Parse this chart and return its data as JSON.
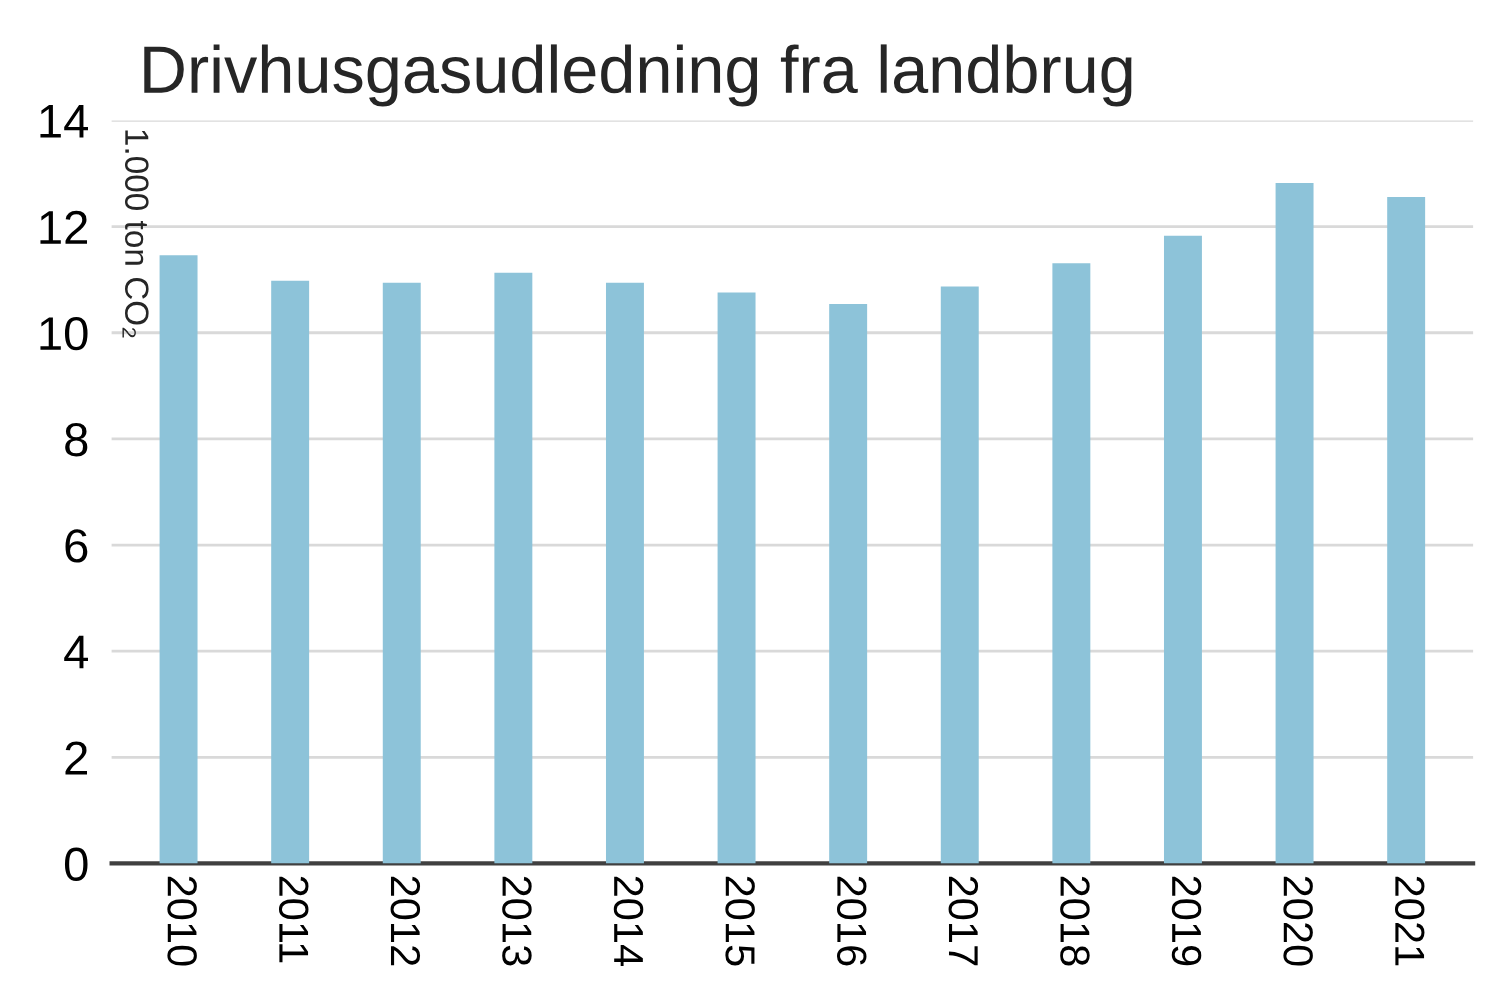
{
  "chart_data": {
    "type": "bar",
    "title": "Drivhusgasudledning fra landbrug",
    "ylabel": "1.000 ton CO₂",
    "categories": [
      "2010",
      "2011",
      "2012",
      "2013",
      "2014",
      "2015",
      "2016",
      "2017",
      "2018",
      "2019",
      "2020",
      "2021"
    ],
    "values": [
      11.46,
      10.98,
      10.94,
      11.13,
      10.94,
      10.76,
      10.54,
      10.87,
      11.31,
      11.83,
      12.82,
      12.56
    ],
    "color": "#8dc3d9",
    "ylim": [
      0,
      14
    ],
    "yticks": [
      0,
      2,
      4,
      6,
      8,
      10,
      12,
      14
    ],
    "grid": "y",
    "legend": false
  }
}
